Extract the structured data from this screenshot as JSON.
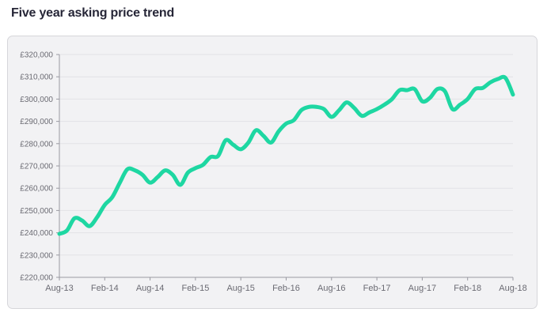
{
  "page": {
    "heading": "Five year asking price trend"
  },
  "colors": {
    "line": "#1ed7a2",
    "panel_background": "#f2f2f4",
    "gridline": "#e2e2e6",
    "axis": "#9a9aa2",
    "text": "#6b6b73",
    "heading": "#262637"
  },
  "chart_data": {
    "type": "line",
    "title": "",
    "xlabel": "",
    "ylabel": "",
    "grid": true,
    "xlim": [
      "2013-08",
      "2018-08"
    ],
    "ylim": [
      220000,
      320000
    ],
    "y_ticks": [
      220000,
      230000,
      240000,
      250000,
      260000,
      270000,
      280000,
      290000,
      300000,
      310000,
      320000
    ],
    "y_tick_labels": [
      "£220,000",
      "£230,000",
      "£240,000",
      "£250,000",
      "£260,000",
      "£270,000",
      "£280,000",
      "£290,000",
      "£300,000",
      "£310,000",
      "£320,000"
    ],
    "x_ticks": [
      "2013-08",
      "2014-02",
      "2014-08",
      "2015-02",
      "2015-08",
      "2016-02",
      "2016-08",
      "2017-02",
      "2017-08",
      "2018-02",
      "2018-08"
    ],
    "x_tick_labels": [
      "Aug-13",
      "Feb-14",
      "Aug-14",
      "Feb-15",
      "Aug-15",
      "Feb-16",
      "Aug-16",
      "Feb-17",
      "Aug-17",
      "Feb-18",
      "Aug-18"
    ],
    "x": [
      "2013-08",
      "2013-09",
      "2013-10",
      "2013-11",
      "2013-12",
      "2014-01",
      "2014-02",
      "2014-03",
      "2014-04",
      "2014-05",
      "2014-06",
      "2014-07",
      "2014-08",
      "2014-09",
      "2014-10",
      "2014-11",
      "2014-12",
      "2015-01",
      "2015-02",
      "2015-03",
      "2015-04",
      "2015-05",
      "2015-06",
      "2015-07",
      "2015-08",
      "2015-09",
      "2015-10",
      "2015-11",
      "2015-12",
      "2016-01",
      "2016-02",
      "2016-03",
      "2016-04",
      "2016-05",
      "2016-06",
      "2016-07",
      "2016-08",
      "2016-09",
      "2016-10",
      "2016-11",
      "2016-12",
      "2017-01",
      "2017-02",
      "2017-03",
      "2017-04",
      "2017-05",
      "2017-06",
      "2017-07",
      "2017-08",
      "2017-09",
      "2017-10",
      "2017-11",
      "2017-12",
      "2018-01",
      "2018-02",
      "2018-03",
      "2018-04",
      "2018-05",
      "2018-06",
      "2018-07",
      "2018-08"
    ],
    "series": [
      {
        "values": [
          239500,
          241000,
          246500,
          245500,
          243000,
          247000,
          252500,
          256000,
          262500,
          268500,
          268000,
          266000,
          262500,
          265000,
          268000,
          266000,
          261500,
          267000,
          269000,
          270500,
          274000,
          274500,
          281500,
          279500,
          277500,
          280500,
          286000,
          283500,
          280500,
          285500,
          289000,
          290500,
          295000,
          296500,
          296500,
          295500,
          292000,
          295000,
          298500,
          296000,
          292500,
          294000,
          295500,
          297500,
          300000,
          304000,
          304000,
          304500,
          299000,
          300500,
          304500,
          303500,
          295500,
          297500,
          300000,
          304500,
          305000,
          307500,
          309000,
          309500,
          302000
        ]
      }
    ]
  }
}
